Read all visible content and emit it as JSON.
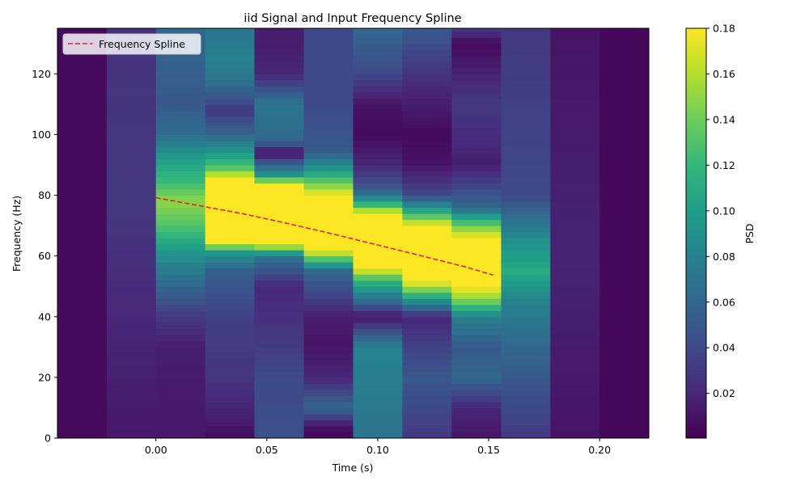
{
  "chart_data": {
    "type": "heatmap",
    "title": "iid Signal and Input Frequency Spline",
    "xlabel": "Time (s)",
    "ylabel": "Frequency (Hz)",
    "colorbar_label": "PSD",
    "colormap": "viridis",
    "xlim": [
      -0.0444,
      0.2222
    ],
    "ylim": [
      0,
      135
    ],
    "x_ticks": [
      0.0,
      0.05,
      0.1,
      0.15,
      0.2
    ],
    "x_tick_labels": [
      "0.00",
      "0.05",
      "0.10",
      "0.15",
      "0.20"
    ],
    "y_ticks": [
      0,
      20,
      40,
      60,
      80,
      100,
      120
    ],
    "y_tick_labels": [
      "0",
      "20",
      "40",
      "60",
      "80",
      "100",
      "120"
    ],
    "color_range": [
      0.0004,
      0.18
    ],
    "colorbar_ticks": [
      0.02,
      0.04,
      0.06,
      0.08,
      0.1,
      0.12,
      0.14,
      0.16,
      0.18
    ],
    "colorbar_tick_labels": [
      "0.02",
      "0.04",
      "0.06",
      "0.08",
      "0.10",
      "0.12",
      "0.14",
      "0.16",
      "0.18"
    ],
    "time_bins": [
      -0.0444,
      -0.0222,
      0.0,
      0.0222,
      0.0444,
      0.0667,
      0.0889,
      0.1111,
      0.1333,
      0.1556,
      0.1778,
      0.2,
      0.2222
    ],
    "freq_bin_width": 2,
    "columns": [
      {
        "t": -0.0333,
        "profile": [
          [
            0,
            0.005
          ],
          [
            135,
            0.005
          ]
        ]
      },
      {
        "t": -0.0111,
        "profile": [
          [
            0,
            0.012
          ],
          [
            20,
            0.016
          ],
          [
            40,
            0.02
          ],
          [
            60,
            0.025
          ],
          [
            80,
            0.03
          ],
          [
            100,
            0.028
          ],
          [
            135,
            0.026
          ]
        ]
      },
      {
        "t": 0.0111,
        "profile": [
          [
            0,
            0.012
          ],
          [
            30,
            0.015
          ],
          [
            40,
            0.03
          ],
          [
            50,
            0.06
          ],
          [
            60,
            0.09
          ],
          [
            70,
            0.13
          ],
          [
            78,
            0.15
          ],
          [
            85,
            0.12
          ],
          [
            92,
            0.1
          ],
          [
            100,
            0.065
          ],
          [
            110,
            0.05
          ],
          [
            135,
            0.06
          ]
        ]
      },
      {
        "t": 0.0333,
        "profile": [
          [
            0,
            0.005
          ],
          [
            6,
            0.015
          ],
          [
            20,
            0.028
          ],
          [
            40,
            0.035
          ],
          [
            55,
            0.055
          ],
          [
            62,
            0.1
          ],
          [
            64,
            0.18
          ],
          [
            86,
            0.18
          ],
          [
            88,
            0.14
          ],
          [
            92,
            0.11
          ],
          [
            100,
            0.06
          ],
          [
            108,
            0.03
          ],
          [
            118,
            0.07
          ],
          [
            125,
            0.08
          ],
          [
            135,
            0.07
          ]
        ]
      },
      {
        "t": 0.0556,
        "profile": [
          [
            0,
            0.045
          ],
          [
            20,
            0.04
          ],
          [
            40,
            0.025
          ],
          [
            50,
            0.02
          ],
          [
            60,
            0.07
          ],
          [
            64,
            0.18
          ],
          [
            84,
            0.18
          ],
          [
            86,
            0.1
          ],
          [
            90,
            0.06
          ],
          [
            94,
            0.005
          ],
          [
            98,
            0.06
          ],
          [
            110,
            0.07
          ],
          [
            120,
            0.02
          ],
          [
            128,
            0.015
          ],
          [
            135,
            0.015
          ]
        ]
      },
      {
        "t": 0.0778,
        "profile": [
          [
            0,
            0.003
          ],
          [
            4,
            0.01
          ],
          [
            10,
            0.06
          ],
          [
            20,
            0.02
          ],
          [
            30,
            0.01
          ],
          [
            40,
            0.015
          ],
          [
            55,
            0.06
          ],
          [
            62,
            0.18
          ],
          [
            80,
            0.18
          ],
          [
            84,
            0.14
          ],
          [
            88,
            0.1
          ],
          [
            95,
            0.05
          ],
          [
            110,
            0.04
          ],
          [
            135,
            0.04
          ]
        ]
      },
      {
        "t": 0.1,
        "profile": [
          [
            0,
            0.07
          ],
          [
            30,
            0.08
          ],
          [
            40,
            0.01
          ],
          [
            45,
            0.06
          ],
          [
            52,
            0.12
          ],
          [
            56,
            0.18
          ],
          [
            74,
            0.18
          ],
          [
            78,
            0.1
          ],
          [
            82,
            0.05
          ],
          [
            90,
            0.02
          ],
          [
            100,
            0.005
          ],
          [
            110,
            0.01
          ],
          [
            120,
            0.04
          ],
          [
            135,
            0.06
          ]
        ]
      },
      {
        "t": 0.1222,
        "profile": [
          [
            0,
            0.03
          ],
          [
            20,
            0.05
          ],
          [
            40,
            0.02
          ],
          [
            46,
            0.1
          ],
          [
            50,
            0.16
          ],
          [
            52,
            0.18
          ],
          [
            70,
            0.18
          ],
          [
            74,
            0.12
          ],
          [
            80,
            0.04
          ],
          [
            90,
            0.01
          ],
          [
            100,
            0.005
          ],
          [
            115,
            0.02
          ],
          [
            135,
            0.05
          ]
        ]
      },
      {
        "t": 0.1444,
        "profile": [
          [
            0,
            0.01
          ],
          [
            10,
            0.02
          ],
          [
            20,
            0.06
          ],
          [
            30,
            0.05
          ],
          [
            40,
            0.08
          ],
          [
            46,
            0.15
          ],
          [
            50,
            0.18
          ],
          [
            66,
            0.18
          ],
          [
            70,
            0.14
          ],
          [
            76,
            0.06
          ],
          [
            90,
            0.015
          ],
          [
            110,
            0.03
          ],
          [
            126,
            0.01
          ],
          [
            130,
            0.005
          ],
          [
            135,
            0.03
          ]
        ]
      },
      {
        "t": 0.1667,
        "profile": [
          [
            0,
            0.03
          ],
          [
            30,
            0.06
          ],
          [
            45,
            0.08
          ],
          [
            55,
            0.11
          ],
          [
            65,
            0.09
          ],
          [
            80,
            0.04
          ],
          [
            135,
            0.03
          ]
        ]
      },
      {
        "t": 0.1889,
        "profile": [
          [
            0,
            0.01
          ],
          [
            60,
            0.018
          ],
          [
            135,
            0.01
          ]
        ]
      },
      {
        "t": 0.2111,
        "profile": [
          [
            0,
            0.004
          ],
          [
            135,
            0.004
          ]
        ]
      }
    ],
    "series": [
      {
        "name": "Frequency Spline",
        "style": "dashed",
        "color": "#e8211d",
        "x": [
          0.0,
          0.02,
          0.04,
          0.06,
          0.08,
          0.1,
          0.12,
          0.14,
          0.152
        ],
        "y": [
          79.2,
          76.5,
          73.8,
          70.6,
          67.2,
          63.6,
          60.0,
          56.3,
          53.7
        ]
      }
    ],
    "legend": {
      "placement": "upper-left",
      "entries": [
        "Frequency Spline"
      ]
    }
  }
}
